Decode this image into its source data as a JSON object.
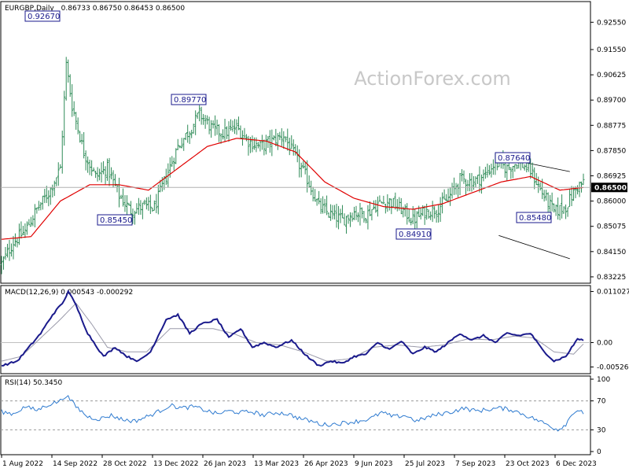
{
  "header": {
    "symbol": "EURGBP,Daily",
    "ohlc": "0.86733 0.86750 0.86453 0.86500"
  },
  "watermark": "ActionForex.com",
  "colors": {
    "bars": "#2e8b57",
    "ma": "#e00000",
    "macd_main": "#1a1a8c",
    "macd_signal": "#9a9aaa",
    "rsi": "#2f7bd0",
    "channel": "#000000",
    "current_bg": "#000000",
    "label_border": "#1a1a8c"
  },
  "chart_data": [
    {
      "type": "ohlc",
      "title": "EURGBP,Daily",
      "x_tick_labels": [
        "1 Aug 2022",
        "14 Sep 2022",
        "28 Oct 2022",
        "13 Dec 2022",
        "26 Jan 2023",
        "13 Mar 2023",
        "26 Apr 2023",
        "9 Jun 2023",
        "25 Jul 2023",
        "7 Sep 2023",
        "23 Oct 2023",
        "6 Dec 2023"
      ],
      "y_tick_labels": [
        "0.92550",
        "0.91550",
        "0.90625",
        "0.89700",
        "0.88775",
        "0.87850",
        "0.86925",
        "0.86000",
        "0.85075",
        "0.84150",
        "0.83225"
      ],
      "ylim": [
        0.8305,
        0.9325
      ],
      "current_price": "0.86500",
      "current_value": 0.865,
      "annotations": [
        {
          "label": "0.92670",
          "value": 0.9267
        },
        {
          "label": "0.89770",
          "value": 0.8977
        },
        {
          "label": "0.85450",
          "value": 0.8545
        },
        {
          "label": "0.84910",
          "value": 0.8491
        },
        {
          "label": "0.87640",
          "value": 0.8764
        },
        {
          "label": "0.85480",
          "value": 0.8548
        }
      ],
      "close_anchors": [
        [
          0,
          0.837
        ],
        [
          6,
          0.845
        ],
        [
          12,
          0.849
        ],
        [
          18,
          0.857
        ],
        [
          24,
          0.863
        ],
        [
          30,
          0.872
        ],
        [
          33,
          0.91
        ],
        [
          36,
          0.895
        ],
        [
          42,
          0.878
        ],
        [
          48,
          0.869
        ],
        [
          54,
          0.872
        ],
        [
          60,
          0.862
        ],
        [
          66,
          0.8565
        ],
        [
          72,
          0.858
        ],
        [
          78,
          0.8575
        ],
        [
          84,
          0.869
        ],
        [
          90,
          0.88
        ],
        [
          96,
          0.886
        ],
        [
          101,
          0.892
        ],
        [
          108,
          0.886
        ],
        [
          114,
          0.885
        ],
        [
          120,
          0.887
        ],
        [
          126,
          0.882
        ],
        [
          132,
          0.88
        ],
        [
          138,
          0.882
        ],
        [
          144,
          0.884
        ],
        [
          150,
          0.876
        ],
        [
          156,
          0.868
        ],
        [
          162,
          0.858
        ],
        [
          168,
          0.855
        ],
        [
          174,
          0.853
        ],
        [
          180,
          0.856
        ],
        [
          186,
          0.855
        ],
        [
          192,
          0.859
        ],
        [
          198,
          0.86
        ],
        [
          204,
          0.857
        ],
        [
          210,
          0.853
        ],
        [
          216,
          0.856
        ],
        [
          222,
          0.857
        ],
        [
          228,
          0.861
        ],
        [
          234,
          0.868
        ],
        [
          240,
          0.867
        ],
        [
          246,
          0.869
        ],
        [
          252,
          0.874
        ],
        [
          258,
          0.872
        ],
        [
          264,
          0.8745
        ],
        [
          270,
          0.871
        ],
        [
          276,
          0.863
        ],
        [
          282,
          0.856
        ],
        [
          288,
          0.858
        ],
        [
          294,
          0.8655
        ],
        [
          297,
          0.8665
        ]
      ],
      "ma_anchors": [
        [
          0,
          0.846
        ],
        [
          15,
          0.847
        ],
        [
          30,
          0.86
        ],
        [
          45,
          0.866
        ],
        [
          60,
          0.866
        ],
        [
          75,
          0.864
        ],
        [
          90,
          0.872
        ],
        [
          105,
          0.88
        ],
        [
          120,
          0.883
        ],
        [
          135,
          0.882
        ],
        [
          150,
          0.878
        ],
        [
          165,
          0.867
        ],
        [
          180,
          0.861
        ],
        [
          195,
          0.858
        ],
        [
          210,
          0.857
        ],
        [
          225,
          0.859
        ],
        [
          240,
          0.863
        ],
        [
          255,
          0.867
        ],
        [
          270,
          0.869
        ],
        [
          285,
          0.864
        ],
        [
          297,
          0.865
        ]
      ],
      "channel": {
        "upper": [
          [
            0.8977,
            0.8742
          ],
          [
            0.9767,
            0.8708
          ]
        ],
        "lower": [
          [
            0.8545,
            0.8474
          ],
          [
            0.9767,
            0.8389
          ]
        ]
      }
    },
    {
      "type": "line",
      "title": "MACD(12,26,9) 0.000543 -0.000292",
      "y_tick_labels": [
        "0.011027",
        "0.00",
        "-0.005267"
      ],
      "ylim": [
        -0.0062,
        0.0118
      ],
      "series": [
        {
          "name": "main",
          "anchors": [
            [
              0,
              -0.005
            ],
            [
              8,
              -0.004
            ],
            [
              14,
              -0.001
            ],
            [
              20,
              0.002
            ],
            [
              26,
              0.006
            ],
            [
              32,
              0.009
            ],
            [
              34,
              0.0112
            ],
            [
              38,
              0.008
            ],
            [
              44,
              0.002
            ],
            [
              52,
              -0.003
            ],
            [
              58,
              -0.001
            ],
            [
              64,
              -0.003
            ],
            [
              70,
              -0.004
            ],
            [
              76,
              -0.002
            ],
            [
              84,
              0.005
            ],
            [
              90,
              0.006
            ],
            [
              96,
              0.002
            ],
            [
              102,
              0.004
            ],
            [
              110,
              0.005
            ],
            [
              116,
              0.001
            ],
            [
              122,
              0.003
            ],
            [
              128,
              -0.001
            ],
            [
              134,
              0.0
            ],
            [
              140,
              -0.001
            ],
            [
              148,
              0.0005
            ],
            [
              156,
              -0.003
            ],
            [
              162,
              -0.005
            ],
            [
              168,
              -0.004
            ],
            [
              174,
              -0.0045
            ],
            [
              180,
              -0.003
            ],
            [
              186,
              -0.0025
            ],
            [
              192,
              0.0
            ],
            [
              198,
              -0.0015
            ],
            [
              204,
              0.0003
            ],
            [
              210,
              -0.0025
            ],
            [
              216,
              -0.001
            ],
            [
              222,
              -0.002
            ],
            [
              228,
              0.0
            ],
            [
              234,
              0.002
            ],
            [
              240,
              0.0005
            ],
            [
              246,
              0.0015
            ],
            [
              252,
              0.0
            ],
            [
              258,
              0.002
            ],
            [
              264,
              0.0015
            ],
            [
              270,
              0.002
            ],
            [
              276,
              -0.0015
            ],
            [
              282,
              -0.004
            ],
            [
              288,
              -0.003
            ],
            [
              294,
              0.0008
            ],
            [
              297,
              0.0005
            ]
          ]
        },
        {
          "name": "signal",
          "anchors": [
            [
              0,
              -0.004
            ],
            [
              10,
              -0.003
            ],
            [
              20,
              0.001
            ],
            [
              30,
              0.005
            ],
            [
              38,
              0.0085
            ],
            [
              46,
              0.004
            ],
            [
              54,
              -0.001
            ],
            [
              64,
              -0.002
            ],
            [
              74,
              -0.002
            ],
            [
              86,
              0.003
            ],
            [
              96,
              0.003
            ],
            [
              108,
              0.003
            ],
            [
              118,
              0.002
            ],
            [
              130,
              0.0
            ],
            [
              142,
              -0.0005
            ],
            [
              154,
              -0.002
            ],
            [
              166,
              -0.004
            ],
            [
              178,
              -0.0035
            ],
            [
              190,
              -0.001
            ],
            [
              202,
              -0.0005
            ],
            [
              214,
              -0.001
            ],
            [
              226,
              -0.0005
            ],
            [
              238,
              0.0008
            ],
            [
              250,
              0.0006
            ],
            [
              262,
              0.0014
            ],
            [
              272,
              0.001
            ],
            [
              282,
              -0.002
            ],
            [
              292,
              -0.0025
            ],
            [
              297,
              -0.0003
            ]
          ]
        }
      ]
    },
    {
      "type": "line",
      "title": "RSI(14) 50.3450",
      "y_tick_labels": [
        "100",
        "70",
        "30",
        "0"
      ],
      "ylim": [
        0,
        100
      ],
      "levels": [
        70,
        30
      ],
      "series": [
        {
          "name": "RSI",
          "anchors": [
            [
              0,
              55
            ],
            [
              6,
              52
            ],
            [
              12,
              62
            ],
            [
              18,
              57
            ],
            [
              24,
              65
            ],
            [
              30,
              70
            ],
            [
              33,
              78
            ],
            [
              38,
              62
            ],
            [
              44,
              48
            ],
            [
              50,
              45
            ],
            [
              56,
              50
            ],
            [
              62,
              44
            ],
            [
              68,
              42
            ],
            [
              74,
              48
            ],
            [
              80,
              55
            ],
            [
              86,
              64
            ],
            [
              92,
              60
            ],
            [
              98,
              62
            ],
            [
              104,
              57
            ],
            [
              110,
              52
            ],
            [
              116,
              56
            ],
            [
              122,
              54
            ],
            [
              128,
              55
            ],
            [
              134,
              50
            ],
            [
              140,
              54
            ],
            [
              146,
              52
            ],
            [
              152,
              46
            ],
            [
              158,
              42
            ],
            [
              164,
              37
            ],
            [
              170,
              38
            ],
            [
              176,
              40
            ],
            [
              182,
              42
            ],
            [
              188,
              45
            ],
            [
              194,
              54
            ],
            [
              200,
              48
            ],
            [
              206,
              50
            ],
            [
              212,
              42
            ],
            [
              218,
              48
            ],
            [
              224,
              52
            ],
            [
              230,
              55
            ],
            [
              236,
              60
            ],
            [
              242,
              56
            ],
            [
              248,
              58
            ],
            [
              254,
              60
            ],
            [
              260,
              58
            ],
            [
              266,
              52
            ],
            [
              272,
              45
            ],
            [
              278,
              38
            ],
            [
              284,
              30
            ],
            [
              288,
              38
            ],
            [
              292,
              55
            ],
            [
              296,
              58
            ],
            [
              297,
              50.345
            ]
          ]
        }
      ]
    }
  ]
}
